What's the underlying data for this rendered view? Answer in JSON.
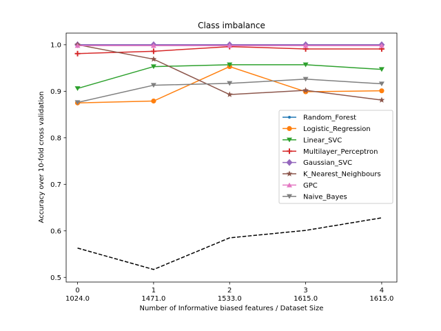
{
  "chart_data": {
    "type": "line",
    "title": "Class imbalance",
    "xlabel": "Number of Informative biased features / Dataset Size",
    "ylabel": "Accuracy over 10-fold cross validation",
    "x": [
      0,
      1,
      2,
      3,
      4
    ],
    "x_tick_labels": [
      "0",
      "1",
      "2",
      "3",
      "4"
    ],
    "x_secondary_labels": [
      "1024.0",
      "1471.0",
      "1533.0",
      "1615.0",
      "1615.0"
    ],
    "xlim": [
      -0.15,
      4.2
    ],
    "ylim": [
      0.49,
      1.025
    ],
    "y_ticks": [
      0.5,
      0.6,
      0.7,
      0.8,
      0.9,
      1.0
    ],
    "y_tick_labels": [
      "0.5",
      "0.6",
      "0.7",
      "0.8",
      "0.9",
      "1.0"
    ],
    "grid": false,
    "legend_position": "center-right",
    "series": [
      {
        "name": "Random_Forest",
        "color": "#1f77b4",
        "marker": "point",
        "values": [
          1.0,
          1.0,
          1.0,
          1.0,
          1.0
        ]
      },
      {
        "name": "Logistic_Regression",
        "color": "#ff7f0e",
        "marker": "circle",
        "values": [
          0.875,
          0.879,
          0.953,
          0.899,
          0.901
        ]
      },
      {
        "name": "Linear_SVC",
        "color": "#2ca02c",
        "marker": "triangle-down",
        "values": [
          0.906,
          0.953,
          0.957,
          0.957,
          0.947
        ]
      },
      {
        "name": "Multilayer_Perceptron",
        "color": "#d62728",
        "marker": "plus",
        "values": [
          0.981,
          0.986,
          0.996,
          0.991,
          0.991
        ]
      },
      {
        "name": "Gaussian_SVC",
        "color": "#9467bd",
        "marker": "diamond",
        "values": [
          1.0,
          1.0,
          1.0,
          1.0,
          1.0
        ]
      },
      {
        "name": "K_Nearest_Neighbours",
        "color": "#8c564b",
        "marker": "star",
        "values": [
          1.0,
          0.969,
          0.893,
          0.902,
          0.881
        ]
      },
      {
        "name": "GPC",
        "color": "#e377c2",
        "marker": "triangle-up",
        "values": [
          0.998,
          0.998,
          0.998,
          0.998,
          0.998
        ]
      },
      {
        "name": "Naive_Bayes",
        "color": "#7f7f7f",
        "marker": "triangle-down",
        "values": [
          0.876,
          0.913,
          0.917,
          0.926,
          0.916
        ]
      }
    ],
    "baseline": {
      "color": "#000000",
      "style": "dashed",
      "values": [
        0.563,
        0.517,
        0.585,
        0.601,
        0.628
      ]
    }
  }
}
